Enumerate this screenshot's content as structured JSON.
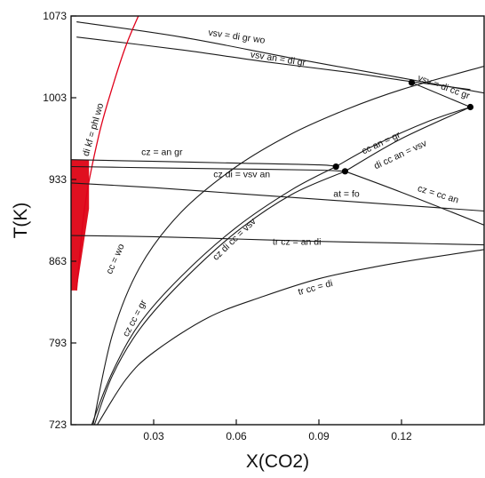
{
  "chart_data": {
    "type": "line",
    "title": "",
    "xlabel": "X(CO2)",
    "ylabel": "T(K)",
    "xlim": [
      0,
      0.15
    ],
    "ylim": [
      723,
      1073
    ],
    "x_ticks": [
      0.03,
      0.06,
      0.09,
      0.12
    ],
    "x_tick_labels": [
      "0.03",
      "0.06",
      "0.09",
      "0.12"
    ],
    "y_ticks": [
      723,
      793,
      863,
      933,
      1003,
      1073
    ],
    "y_tick_labels": [
      "723",
      "793",
      "863",
      "933",
      "1003",
      "1073"
    ],
    "grid": false,
    "legend": "none",
    "colors": {
      "line": "#1a1a1a",
      "highlight": "#e0001a",
      "shade": "#e01020"
    },
    "series": [
      {
        "name": "vsv = di gr wo",
        "x": [
          0.002,
          0.04,
          0.08,
          0.12,
          0.15
        ],
        "y": [
          1068,
          1055,
          1037,
          1020,
          1007
        ]
      },
      {
        "name": "vsv an = di gr",
        "x": [
          0.002,
          0.04,
          0.07,
          0.1,
          0.12,
          0.145
        ],
        "y": [
          1055,
          1044,
          1034,
          1025,
          1018,
          1010
        ]
      },
      {
        "name": "vsv = di cc gr",
        "x": [
          0.1237,
          0.145
        ],
        "y": [
          1016,
          995
        ]
      },
      {
        "name": "di kf = phl wo",
        "x": [
          0.002,
          0.005,
          0.01,
          0.015,
          0.02,
          0.025
        ],
        "y": [
          838,
          910,
          970,
          1012,
          1048,
          1076
        ]
      },
      {
        "name": "cz = an gr",
        "x": [
          0.0,
          0.03,
          0.06,
          0.09,
          0.0962
        ],
        "y": [
          950,
          948.5,
          947,
          945.5,
          944
        ]
      },
      {
        "name": "cz di = vsv an",
        "x": [
          0.0,
          0.03,
          0.06,
          0.09,
          0.0995
        ],
        "y": [
          944,
          943,
          942,
          941,
          940
        ]
      },
      {
        "name": "cz = cc an",
        "x": [
          0.0995,
          0.12,
          0.15
        ],
        "y": [
          940,
          922,
          894
        ]
      },
      {
        "name": "at = fo",
        "x": [
          0.0,
          0.03,
          0.06,
          0.09,
          0.12,
          0.15
        ],
        "y": [
          930,
          926,
          921,
          916,
          911,
          906
        ]
      },
      {
        "name": "tr cz = an di",
        "x": [
          0.0,
          0.03,
          0.06,
          0.09,
          0.12,
          0.15
        ],
        "y": [
          885,
          884,
          882,
          880,
          878.5,
          877
        ]
      },
      {
        "name": "cc = wo",
        "x": [
          0.008,
          0.015,
          0.025,
          0.04,
          0.06,
          0.08,
          0.1,
          0.12,
          0.15
        ],
        "y": [
          723,
          800,
          858,
          905,
          944,
          972,
          993,
          1010,
          1030
        ]
      },
      {
        "name": "cz cc = gr",
        "x": [
          0.0075,
          0.015,
          0.025,
          0.04,
          0.06,
          0.08,
          0.0962
        ],
        "y": [
          723,
          768,
          810,
          850,
          892,
          924,
          944
        ]
      },
      {
        "name": "cz di cc = vsv",
        "x": [
          0.0085,
          0.015,
          0.025,
          0.04,
          0.06,
          0.08,
          0.0995
        ],
        "y": [
          723,
          765,
          805,
          845,
          888,
          920,
          940
        ]
      },
      {
        "name": "cc an = gr",
        "x": [
          0.0962,
          0.11,
          0.13,
          0.145
        ],
        "y": [
          944,
          962,
          983,
          995
        ]
      },
      {
        "name": "di cc an = vsv",
        "x": [
          0.0995,
          0.12,
          0.145
        ],
        "y": [
          940,
          968,
          995
        ]
      },
      {
        "name": "tr cc = di",
        "x": [
          0.0095,
          0.02,
          0.03,
          0.05,
          0.07,
          0.09,
          0.11,
          0.13,
          0.15
        ],
        "y": [
          723,
          762,
          785,
          815,
          833,
          848,
          858,
          866,
          873
        ]
      }
    ],
    "invariant_points": [
      {
        "x": 0.1237,
        "y": 1016
      },
      {
        "x": 0.145,
        "y": 995
      },
      {
        "x": 0.0962,
        "y": 944
      },
      {
        "x": 0.0995,
        "y": 940
      }
    ],
    "shaded_region": {
      "x": [
        0.0,
        0.0065,
        0.0065,
        0.002,
        0.0
      ],
      "y": [
        950,
        950,
        908,
        838,
        838
      ]
    },
    "annotations": [
      {
        "text": "vsv = di gr wo",
        "x": 0.06,
        "y": 1053,
        "angle": 8
      },
      {
        "text": "vsv an = di gr",
        "x": 0.075,
        "y": 1034,
        "angle": 9
      },
      {
        "text": "vsv = di cc gr",
        "x": 0.135,
        "y": 1010,
        "angle": 20
      },
      {
        "text": "di kf = phl wo",
        "x": 0.009,
        "y": 975,
        "angle": -74
      },
      {
        "text": "cz = an gr",
        "x": 0.033,
        "y": 954,
        "angle": 0
      },
      {
        "text": "cz di = vsv an",
        "x": 0.062,
        "y": 935,
        "angle": 0
      },
      {
        "text": "cc an = gr",
        "x": 0.113,
        "y": 962,
        "angle": -25
      },
      {
        "text": "di cc an = vsv",
        "x": 0.12,
        "y": 952,
        "angle": -25
      },
      {
        "text": "at = fo",
        "x": 0.1,
        "y": 918,
        "angle": 0
      },
      {
        "text": "cz = cc an",
        "x": 0.133,
        "y": 918,
        "angle": 17
      },
      {
        "text": "tr cz = an di",
        "x": 0.082,
        "y": 877,
        "angle": 0
      },
      {
        "text": "cc = wo",
        "x": 0.017,
        "y": 864,
        "angle": -66
      },
      {
        "text": "cz di cc = vsv",
        "x": 0.06,
        "y": 880,
        "angle": -44
      },
      {
        "text": "cz cc = gr",
        "x": 0.024,
        "y": 813,
        "angle": -62
      },
      {
        "text": "tr cc = di",
        "x": 0.089,
        "y": 838,
        "angle": -15
      }
    ]
  }
}
